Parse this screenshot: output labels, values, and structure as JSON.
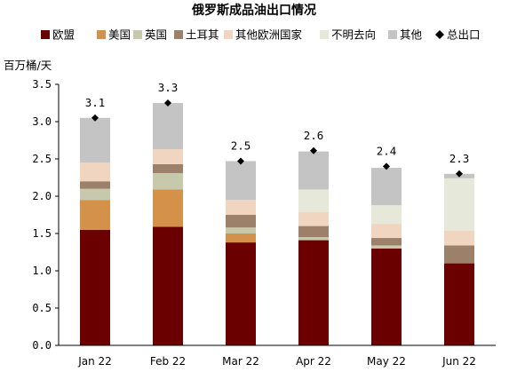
{
  "chart_data": {
    "type": "bar",
    "stacked": true,
    "title": "俄罗斯成品油出口情况",
    "ylabel": "百万桶/天",
    "categories": [
      "Jan 22",
      "Feb 22",
      "Mar 22",
      "Apr 22",
      "May 22",
      "Jun 22"
    ],
    "ylim": [
      0,
      3.5
    ],
    "yticks": [
      "0.0",
      "0.5",
      "1.0",
      "1.5",
      "2.0",
      "2.5",
      "3.0",
      "3.5"
    ],
    "grid": false,
    "legend_position": "top",
    "series": [
      {
        "name": "欧盟",
        "color": "#6b0000",
        "values": [
          1.55,
          1.59,
          1.38,
          1.41,
          1.3,
          1.1
        ]
      },
      {
        "name": "美国",
        "color": "#d4914a",
        "values": [
          0.4,
          0.5,
          0.12,
          0.0,
          0.0,
          0.0
        ]
      },
      {
        "name": "英国",
        "color": "#c7c9ad",
        "values": [
          0.15,
          0.22,
          0.08,
          0.04,
          0.04,
          0.0
        ]
      },
      {
        "name": "土耳其",
        "color": "#9d8069",
        "values": [
          0.1,
          0.12,
          0.17,
          0.15,
          0.1,
          0.24
        ]
      },
      {
        "name": "其他欧洲国家",
        "color": "#f0d5c0",
        "values": [
          0.25,
          0.2,
          0.2,
          0.19,
          0.19,
          0.2
        ]
      },
      {
        "name": "不明去向",
        "color": "#e6e8d9",
        "values": [
          0.0,
          0.0,
          0.0,
          0.3,
          0.25,
          0.7
        ]
      },
      {
        "name": "其他",
        "color": "#c4c4c4",
        "values": [
          0.6,
          0.62,
          0.52,
          0.51,
          0.5,
          0.06
        ]
      }
    ],
    "total": {
      "name": "总出口",
      "marker_color": "#000000",
      "values": [
        3.05,
        3.25,
        2.47,
        2.61,
        2.4,
        2.3
      ]
    },
    "data_labels": [
      "3.1",
      "3.3",
      "2.5",
      "2.6",
      "2.4",
      "2.3"
    ]
  }
}
